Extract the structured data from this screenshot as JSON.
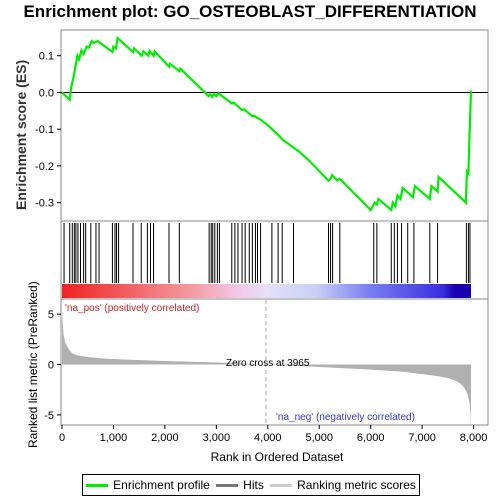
{
  "chart_data": {
    "type": "line",
    "title": "Enrichment plot: GO_OSTEOBLAST_DIFFERENTIATION",
    "xlabel": "Rank in Ordered Dataset",
    "ylabel_top": "Enrichment score (ES)",
    "ylabel_bottom": "Ranked list metric (PreRanked)",
    "xlim": [
      0,
      8000
    ],
    "top_ylim": [
      -0.35,
      0.17
    ],
    "top_yticks": [
      0.1,
      0.0,
      -0.1,
      -0.2,
      -0.3
    ],
    "top_ytick_labels": [
      "0.1",
      "0.0",
      "-0.1",
      "-0.2",
      "-0.3"
    ],
    "bottom_ylim": [
      -6,
      6.5
    ],
    "bottom_yticks": [
      5,
      0,
      -5
    ],
    "bottom_ytick_labels": [
      "5",
      "0",
      "-5"
    ],
    "xticks": [
      0,
      1000,
      2000,
      3000,
      4000,
      5000,
      6000,
      7000,
      8000
    ],
    "xtick_labels": [
      "0",
      "1,000",
      "2,000",
      "3,000",
      "4,000",
      "5,000",
      "6,000",
      "7,000",
      "8,000"
    ],
    "total_ranks": 7950,
    "zero_cross": 3965,
    "zero_cross_label": "Zero cross at 3965",
    "pos_label": "'na_pos' (positively correlated)",
    "neg_label": "'na_neg' (negatively correlated)",
    "colors": {
      "profile": "#00ee00",
      "hits": "#000000",
      "metric": "#b0b0b0",
      "zero_line": "#aaaaaa"
    },
    "series": [
      {
        "name": "Enrichment profile",
        "x": [
          0,
          150,
          180,
          230,
          260,
          300,
          330,
          380,
          420,
          480,
          520,
          580,
          620,
          700,
          740,
          980,
          1000,
          1050,
          1080,
          1380,
          1400,
          1550,
          1580,
          1680,
          1700,
          1780,
          1800,
          2080,
          2100,
          2280,
          2300,
          2850,
          2880,
          2920,
          2950,
          3000,
          3040,
          3300,
          3340,
          3500,
          3540,
          3700,
          3740,
          3800,
          3840,
          3965,
          4200,
          4300,
          4600,
          4800,
          5180,
          5220,
          5250,
          5350,
          5400,
          6000,
          6080,
          6120,
          6150,
          6400,
          6430,
          6480,
          6520,
          6580,
          6620,
          6820,
          6860,
          7150,
          7180,
          7300,
          7320,
          7850,
          7870,
          7900,
          7920,
          7950
        ],
        "y": [
          0.0,
          -0.02,
          0.015,
          0.045,
          0.07,
          0.1,
          0.09,
          0.115,
          0.105,
          0.125,
          0.122,
          0.14,
          0.135,
          0.14,
          0.135,
          0.11,
          0.125,
          0.12,
          0.148,
          0.11,
          0.12,
          0.1,
          0.112,
          0.1,
          0.113,
          0.1,
          0.112,
          0.07,
          0.078,
          0.058,
          0.065,
          -0.01,
          -0.005,
          -0.012,
          -0.004,
          -0.01,
          -0.002,
          -0.03,
          -0.028,
          -0.048,
          -0.046,
          -0.065,
          -0.063,
          -0.07,
          -0.072,
          -0.085,
          -0.115,
          -0.13,
          -0.16,
          -0.185,
          -0.24,
          -0.235,
          -0.225,
          -0.24,
          -0.235,
          -0.32,
          -0.3,
          -0.305,
          -0.29,
          -0.32,
          -0.3,
          -0.31,
          -0.28,
          -0.29,
          -0.26,
          -0.285,
          -0.255,
          -0.29,
          -0.255,
          -0.27,
          -0.23,
          -0.3,
          -0.215,
          -0.22,
          -0.12,
          0.005
        ]
      },
      {
        "name": "Hits",
        "x": [
          40,
          150,
          200,
          240,
          270,
          310,
          360,
          420,
          460,
          560,
          660,
          720,
          980,
          1030,
          1060,
          1100,
          1380,
          1540,
          1660,
          1720,
          1780,
          2080,
          2280,
          2860,
          2900,
          2930,
          2970,
          3020,
          3060,
          3300,
          3360,
          3420,
          3500,
          3560,
          3640,
          3700,
          3760,
          3800,
          3860,
          4080,
          4200,
          4280,
          4500,
          5180,
          5220,
          5260,
          5400,
          6060,
          6120,
          6400,
          6460,
          6520,
          6600,
          6720,
          6840,
          7150,
          7300,
          7860,
          7900,
          7930
        ]
      },
      {
        "name": "Ranking metric scores",
        "x": [
          0,
          10,
          30,
          60,
          100,
          150,
          200,
          300,
          500,
          800,
          1200,
          2000,
          3000,
          3965,
          5000,
          6000,
          6600,
          7000,
          7300,
          7500,
          7650,
          7750,
          7820,
          7880,
          7920,
          7940,
          7950
        ],
        "y": [
          5.5,
          4.5,
          3.0,
          2.2,
          1.8,
          1.4,
          1.1,
          0.9,
          0.75,
          0.6,
          0.5,
          0.35,
          0.2,
          0.0,
          -0.25,
          -0.5,
          -0.7,
          -0.95,
          -1.15,
          -1.35,
          -1.6,
          -1.9,
          -2.3,
          -2.9,
          -3.8,
          -5.0,
          -6.0
        ]
      }
    ],
    "legend": {
      "position": "bottom",
      "entries": [
        "Enrichment profile",
        "Hits",
        "Ranking metric scores"
      ]
    }
  }
}
